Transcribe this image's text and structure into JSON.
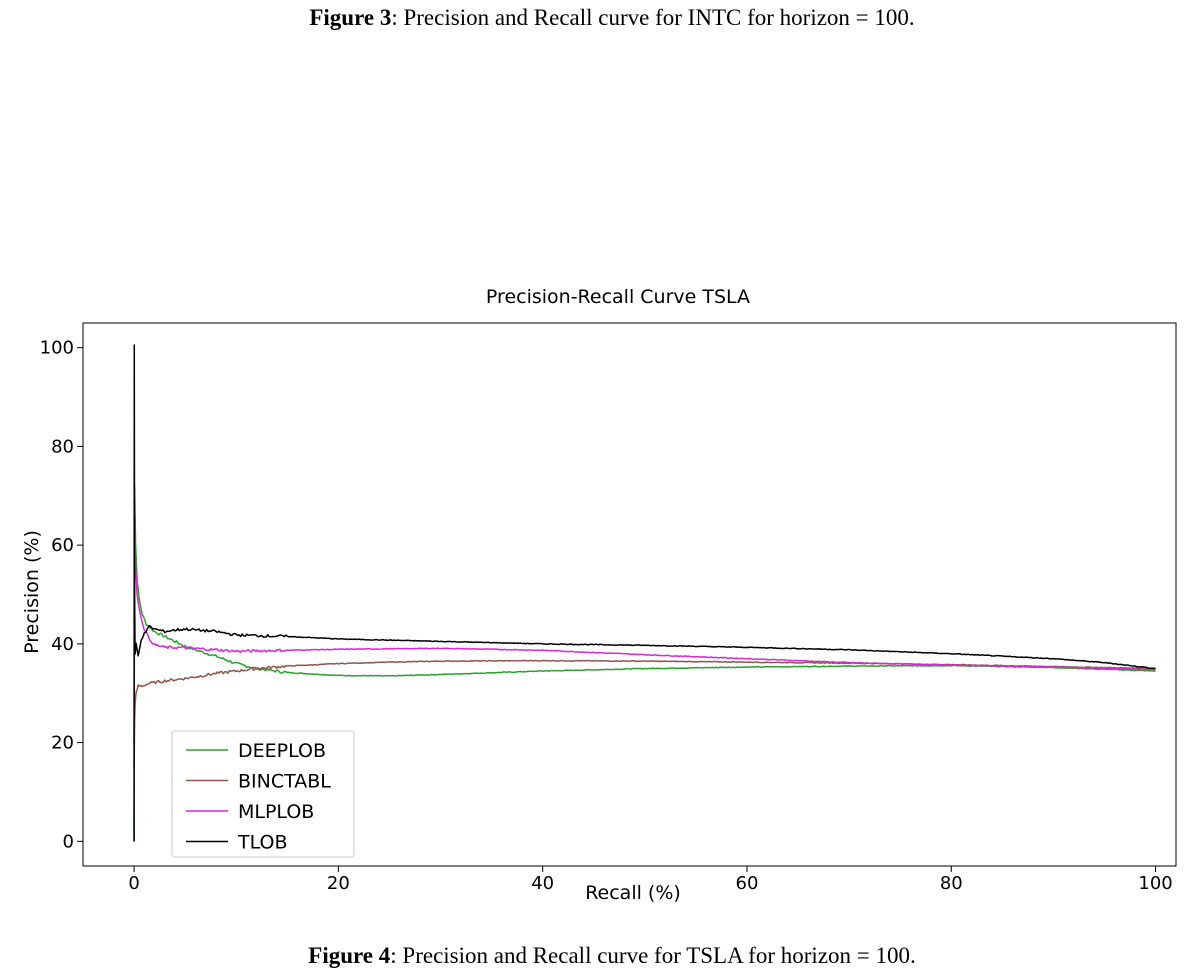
{
  "captions": {
    "fig3_label": "Figure 3",
    "fig3_text": ": Precision and Recall curve for INTC for horizon = 100.",
    "fig4_label": "Figure 4",
    "fig4_text": ": Precision and Recall curve for TSLA for horizon = 100."
  },
  "chart_data": {
    "type": "line",
    "title": "Precision-Recall Curve TSLA",
    "xlabel": "Recall (%)",
    "ylabel": "Precision (%)",
    "xlim": [
      -5,
      102
    ],
    "ylim": [
      -5,
      105
    ],
    "xticks": [
      0,
      20,
      40,
      60,
      80,
      100
    ],
    "yticks": [
      0,
      20,
      40,
      60,
      80,
      100
    ],
    "grid": false,
    "legend_position": "lower-left",
    "series": [
      {
        "name": "DEEPLOB",
        "color": "#2ca02c",
        "x": [
          0,
          0.05,
          0.15,
          0.3,
          0.5,
          0.8,
          1.2,
          2,
          3,
          4,
          5,
          6,
          8,
          10,
          12,
          15,
          20,
          25,
          30,
          40,
          50,
          60,
          70,
          80,
          90,
          100
        ],
        "y": [
          0,
          72,
          60,
          53,
          49,
          46,
          44,
          42.5,
          41.5,
          40.5,
          39.5,
          38.8,
          37.5,
          36,
          35,
          34.2,
          33.6,
          33.5,
          33.8,
          34.5,
          35,
          35.3,
          35.5,
          35.6,
          35.2,
          34.5
        ]
      },
      {
        "name": "BINCTABL",
        "color": "#8c564b",
        "x": [
          0,
          0.05,
          0.1,
          0.2,
          0.4,
          0.8,
          1.5,
          3,
          5,
          8,
          12,
          15,
          20,
          25,
          30,
          40,
          50,
          60,
          70,
          80,
          90,
          100
        ],
        "y": [
          15,
          24,
          28,
          30,
          31.5,
          31.5,
          32,
          32.5,
          33,
          34,
          35,
          35.5,
          36,
          36.3,
          36.5,
          36.6,
          36.5,
          36.3,
          36.1,
          35.8,
          35.4,
          35
        ]
      },
      {
        "name": "MLPLOB",
        "color": "#d62ad6",
        "x": [
          0,
          0.05,
          0.15,
          0.3,
          0.6,
          1,
          1.5,
          2,
          3,
          5,
          8,
          10,
          15,
          20,
          25,
          30,
          40,
          50,
          60,
          70,
          80,
          90,
          100
        ],
        "y": [
          20,
          66,
          55,
          50,
          46,
          43,
          41,
          39.8,
          39.3,
          39.2,
          38.8,
          38.5,
          38.7,
          38.9,
          39,
          39.1,
          38.7,
          37.8,
          37,
          36.2,
          35.7,
          35.3,
          34.8
        ]
      },
      {
        "name": "TLOB",
        "color": "#000000",
        "x": [
          0,
          0.02,
          0.05,
          0.1,
          0.2,
          0.4,
          0.7,
          1,
          1.5,
          2,
          3,
          4,
          5,
          8,
          10,
          15,
          20,
          30,
          40,
          50,
          60,
          70,
          80,
          90,
          95,
          100
        ],
        "y": [
          0,
          100.5,
          50,
          38,
          40,
          37.5,
          41,
          42,
          43.5,
          43,
          42.5,
          42.8,
          43,
          42.5,
          41.8,
          41.5,
          41,
          40.5,
          40,
          39.7,
          39.3,
          38.8,
          38,
          37,
          36.2,
          35
        ]
      }
    ]
  }
}
